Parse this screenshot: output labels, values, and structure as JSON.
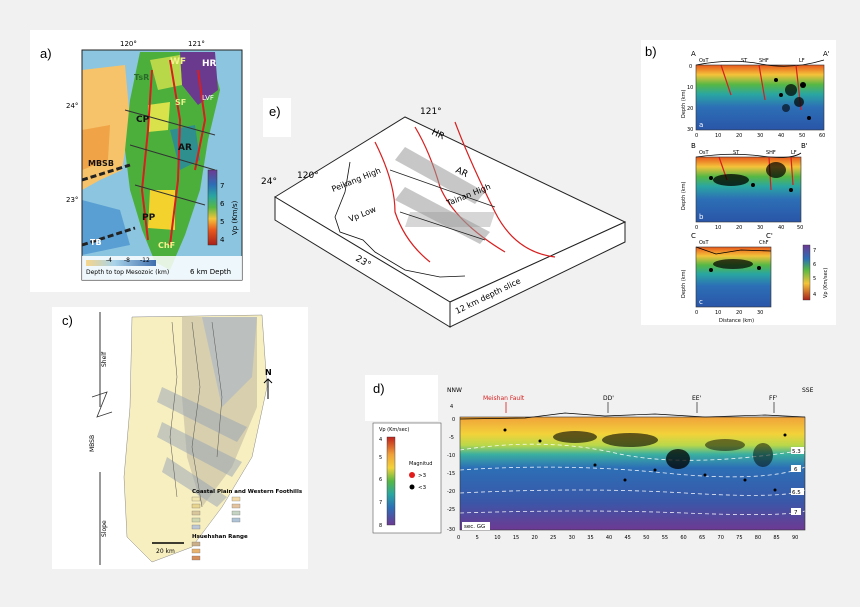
{
  "panels": {
    "a": {
      "label": "a)",
      "lon_ticks": [
        "120°",
        "121°"
      ],
      "lat_ticks": [
        "24°",
        "23°"
      ],
      "units": [
        "WF",
        "HR",
        "TsR",
        "CP",
        "SF",
        "AR",
        "PP",
        "ChF",
        "LVF",
        "MBSB",
        "TB"
      ],
      "colorbar_title": "Vp (Km/s)",
      "colorbar_ticks": [
        "7",
        "6",
        "5",
        "4"
      ],
      "depth_text": "6 km Depth",
      "contour_legend": "Depth to top Mesozoic (km)",
      "contour_ticks": [
        "-4",
        "-8",
        "-12"
      ]
    },
    "b": {
      "label": "b)",
      "sections": [
        {
          "start": "A",
          "end": "A'",
          "tags": [
            "OsT",
            "ST",
            "SHF",
            "LF"
          ],
          "letter": "a"
        },
        {
          "start": "B",
          "end": "B'",
          "tags": [
            "OsT",
            "ST",
            "SHF",
            "LF"
          ],
          "letter": "b"
        },
        {
          "start": "C",
          "end": "C'",
          "tags": [
            "OsT",
            "ChF"
          ],
          "letter": "c"
        }
      ],
      "depth_label": "Depth (km)",
      "distance_label": "Distance (km)",
      "x_ticks_long": [
        "0",
        "10",
        "20",
        "30",
        "40",
        "50",
        "60"
      ],
      "x_ticks_mid": [
        "0",
        "10",
        "20",
        "30",
        "40",
        "50"
      ],
      "x_ticks_short": [
        "0",
        "10",
        "20",
        "30"
      ],
      "y_ticks": [
        "0",
        "10",
        "20",
        "30"
      ],
      "colorbar_title": "Vp (Km/sec)",
      "colorbar_ticks": [
        "7",
        "6",
        "5",
        "4"
      ]
    },
    "c": {
      "label": "c)",
      "north": "N",
      "shelf_label": "Shelf",
      "slope_label": "Slope",
      "mbsb_label": "MBSB",
      "legend_title_1": "Coastal Plain and Western Foothills",
      "legend_title_2": "Hsuehshan Range",
      "scale": "20 km"
    },
    "d": {
      "label": "d)",
      "left_dir": "NNW",
      "right_dir": "SSE",
      "fault": "Meishan Fault",
      "markers": [
        "DD'",
        "EE'",
        "FF'"
      ],
      "cbar_title": "Vp (Km/sec)",
      "cbar_ticks": [
        "8",
        "7",
        "6",
        "5",
        "4"
      ],
      "legend_title": "Magnitud",
      "legend_items": [
        ">3",
        "<3"
      ],
      "section_tag": "sec. GG",
      "x_ticks": [
        "0",
        "5",
        "10",
        "15",
        "20",
        "25",
        "30",
        "35",
        "40",
        "45",
        "50",
        "55",
        "60",
        "65",
        "70",
        "75",
        "80",
        "85",
        "90"
      ],
      "y_ticks": [
        "4",
        "0",
        "-5",
        "-10",
        "-15",
        "-20",
        "-25",
        "-30"
      ],
      "contours": [
        "5.3",
        "6",
        "6.5",
        "7"
      ]
    },
    "e": {
      "label": "e)",
      "lon1": "121°",
      "lon2": "120°",
      "lat1": "24°",
      "lat2": "23°",
      "units": [
        "HR",
        "AR",
        "Peikang High",
        "Tainan High",
        "Vp Low"
      ],
      "depth_note": "12 km depth slice"
    }
  },
  "colors": {
    "fault": "#d81e1e",
    "velocity": [
      "#a8211a",
      "#e8581d",
      "#f4c33a",
      "#cfe34c",
      "#57b845",
      "#2aa6a1",
      "#2c6fb6",
      "#43509b",
      "#6d3a93"
    ]
  }
}
